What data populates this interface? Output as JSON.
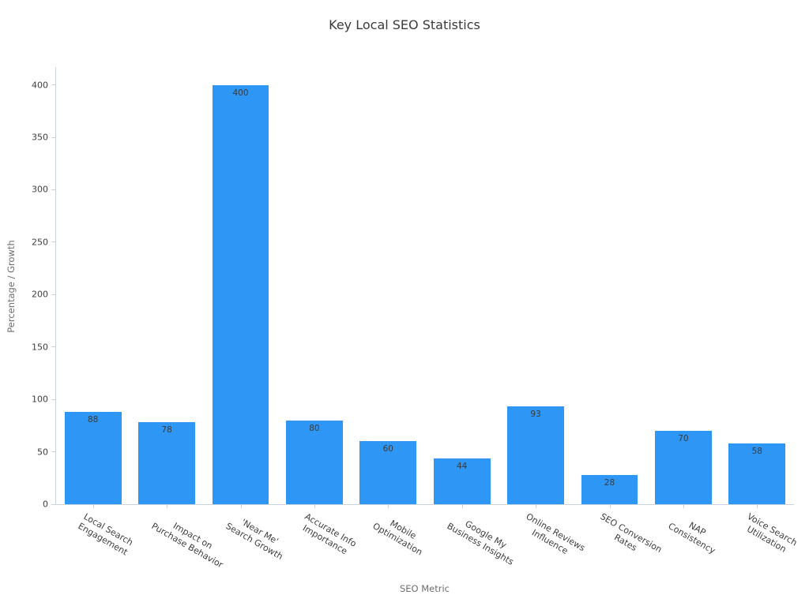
{
  "chart_data": {
    "type": "bar",
    "title": "Key Local SEO Statistics",
    "xlabel": "SEO Metric",
    "ylabel": "Percentage / Growth",
    "categories": [
      "Local Search\nEngagement",
      "Impact on\nPurchase Behavior",
      "'Near Me'\nSearch Growth",
      "Accurate Info\nImportance",
      "Mobile\nOptimization",
      "Google My\nBusiness Insights",
      "Online Reviews\nInfluence",
      "SEO Conversion\nRates",
      "NAP\nConsistency",
      "Voice Search\nUtilization"
    ],
    "values": [
      88,
      78,
      400,
      80,
      60,
      44,
      93,
      28,
      70,
      58
    ],
    "yticks": [
      0,
      50,
      100,
      150,
      200,
      250,
      300,
      350,
      400
    ],
    "ylim": [
      0,
      417
    ],
    "grid": false,
    "legend": null,
    "bar_color": "#2e96f5",
    "value_label_color": "#3a3a3a",
    "tick_label_color": "#3d3d3d",
    "axis_label_color": "#6e6e6e",
    "spine_color": "#c9d3dc",
    "background_color": "#ffffff"
  }
}
